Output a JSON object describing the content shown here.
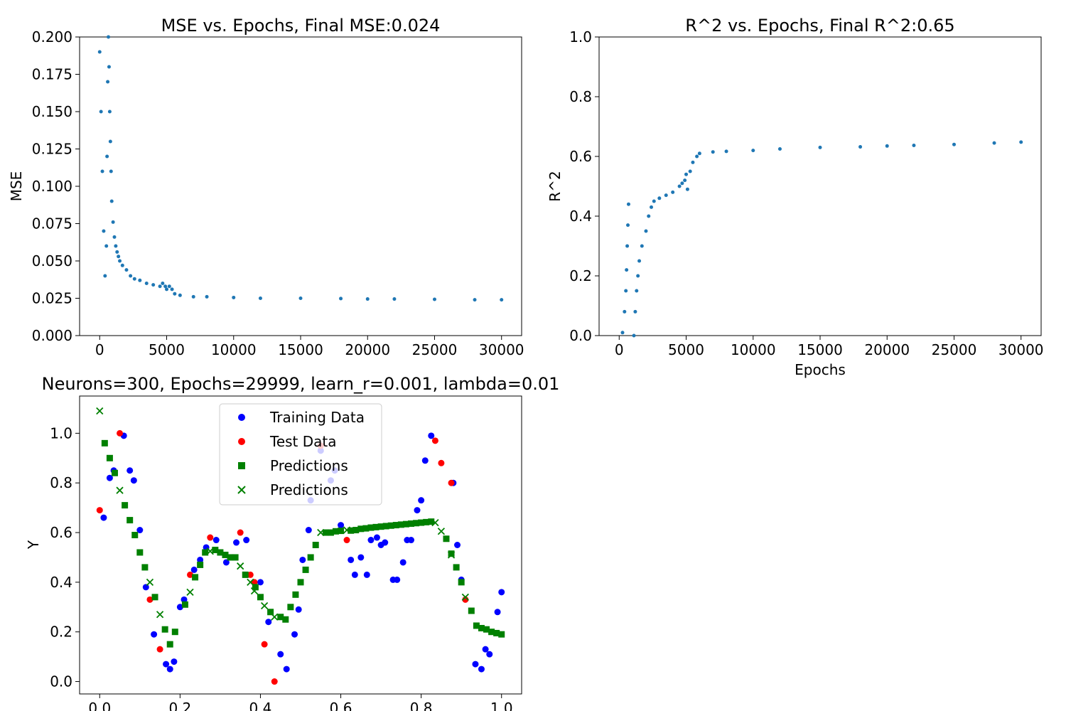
{
  "colors": {
    "history": "#1f77b4",
    "training": "#0000ff",
    "test": "#ff0000",
    "prediction": "#008000"
  },
  "chart_data": [
    {
      "type": "scatter",
      "title": "MSE vs. Epochs, Final MSE:0.024",
      "xlabel": "",
      "ylabel": "MSE",
      "xlim": [
        -1500,
        31500
      ],
      "ylim": [
        0,
        0.2
      ],
      "xticks": [
        0,
        5000,
        10000,
        15000,
        20000,
        25000,
        30000
      ],
      "xtick_labels": [
        "0",
        "5000",
        "10000",
        "15000",
        "20000",
        "25000",
        "30000"
      ],
      "yticks": [
        0.0,
        0.025,
        0.05,
        0.075,
        0.1,
        0.125,
        0.15,
        0.175,
        0.2
      ],
      "ytick_labels": [
        "0.000",
        "0.025",
        "0.050",
        "0.075",
        "0.100",
        "0.125",
        "0.150",
        "0.175",
        "0.200"
      ],
      "series": [
        {
          "x": [
            0,
            100,
            200,
            300,
            400,
            500,
            550,
            600,
            650,
            700,
            750,
            800,
            850,
            900,
            1000,
            1100,
            1200,
            1300,
            1400,
            1500,
            1700,
            2000,
            2300,
            2600,
            3000,
            3500,
            4000,
            4500,
            4700,
            4900,
            5000,
            5200,
            5400,
            5600,
            6000,
            7000,
            8000,
            10000,
            12000,
            15000,
            18000,
            20000,
            22000,
            25000,
            28000,
            30000
          ],
          "y": [
            0.19,
            0.15,
            0.11,
            0.07,
            0.04,
            0.06,
            0.12,
            0.17,
            0.2,
            0.18,
            0.15,
            0.13,
            0.11,
            0.09,
            0.076,
            0.066,
            0.06,
            0.056,
            0.053,
            0.05,
            0.047,
            0.044,
            0.04,
            0.038,
            0.037,
            0.035,
            0.034,
            0.033,
            0.035,
            0.033,
            0.031,
            0.033,
            0.031,
            0.028,
            0.027,
            0.026,
            0.026,
            0.0255,
            0.025,
            0.025,
            0.0248,
            0.0245,
            0.0245,
            0.0243,
            0.024,
            0.024
          ]
        }
      ]
    },
    {
      "type": "scatter",
      "title": "R^2 vs. Epochs, Final R^2:0.65",
      "xlabel": "Epochs",
      "ylabel": "R^2",
      "xlim": [
        -1500,
        31500
      ],
      "ylim": [
        0,
        1.0
      ],
      "xticks": [
        0,
        5000,
        10000,
        15000,
        20000,
        25000,
        30000
      ],
      "xtick_labels": [
        "0",
        "5000",
        "10000",
        "15000",
        "20000",
        "25000",
        "30000"
      ],
      "yticks": [
        0.0,
        0.2,
        0.4,
        0.6,
        0.8,
        1.0
      ],
      "ytick_labels": [
        "0.0",
        "0.2",
        "0.4",
        "0.6",
        "0.8",
        "1.0"
      ],
      "series": [
        {
          "x": [
            250,
            400,
            500,
            550,
            600,
            650,
            700,
            1100,
            1200,
            1300,
            1400,
            1500,
            1700,
            2000,
            2200,
            2400,
            2600,
            3000,
            3500,
            4000,
            4500,
            4700,
            4900,
            5000,
            5100,
            5300,
            5500,
            5800,
            6000,
            7000,
            8000,
            10000,
            12000,
            15000,
            18000,
            20000,
            22000,
            25000,
            28000,
            30000
          ],
          "y": [
            0.01,
            0.08,
            0.15,
            0.22,
            0.3,
            0.37,
            0.44,
            0.0,
            0.08,
            0.15,
            0.2,
            0.25,
            0.3,
            0.35,
            0.4,
            0.43,
            0.45,
            0.46,
            0.47,
            0.48,
            0.5,
            0.51,
            0.52,
            0.54,
            0.49,
            0.55,
            0.58,
            0.6,
            0.61,
            0.615,
            0.617,
            0.62,
            0.625,
            0.63,
            0.632,
            0.635,
            0.637,
            0.64,
            0.645,
            0.648
          ]
        }
      ]
    },
    {
      "type": "scatter",
      "title": "Neurons=300, Epochs=29999, learn_r=0.001, lambda=0.01",
      "xlabel": "",
      "ylabel": "Y",
      "xlim": [
        -0.05,
        1.05
      ],
      "ylim": [
        -0.05,
        1.15
      ],
      "xticks": [
        0.0,
        0.2,
        0.4,
        0.6,
        0.8,
        1.0
      ],
      "xtick_labels": [
        "0.0",
        "0.2",
        "0.4",
        "0.6",
        "0.8",
        "1.0"
      ],
      "yticks": [
        0.0,
        0.2,
        0.4,
        0.6,
        0.8,
        1.0
      ],
      "ytick_labels": [
        "0.0",
        "0.2",
        "0.4",
        "0.6",
        "0.8",
        "1.0"
      ],
      "legend": {
        "position": "upper-center",
        "entries": [
          "Training Data",
          "Test Data",
          "Predictions",
          "Predictions"
        ]
      },
      "series": [
        {
          "name": "Training Data",
          "marker": "circle",
          "x": [
            0.01,
            0.025,
            0.035,
            0.06,
            0.075,
            0.085,
            0.1,
            0.115,
            0.135,
            0.165,
            0.175,
            0.185,
            0.2,
            0.21,
            0.235,
            0.25,
            0.265,
            0.29,
            0.3,
            0.315,
            0.34,
            0.365,
            0.4,
            0.42,
            0.45,
            0.465,
            0.485,
            0.495,
            0.505,
            0.52,
            0.525,
            0.55,
            0.575,
            0.585,
            0.6,
            0.625,
            0.635,
            0.65,
            0.665,
            0.675,
            0.69,
            0.7,
            0.71,
            0.73,
            0.74,
            0.755,
            0.765,
            0.775,
            0.79,
            0.8,
            0.81,
            0.825,
            0.88,
            0.89,
            0.9,
            0.935,
            0.95,
            0.96,
            0.97,
            0.99,
            1.0
          ],
          "y": [
            0.66,
            0.82,
            0.85,
            0.99,
            0.85,
            0.81,
            0.61,
            0.38,
            0.19,
            0.07,
            0.05,
            0.08,
            0.3,
            0.33,
            0.45,
            0.49,
            0.54,
            0.57,
            0.52,
            0.48,
            0.56,
            0.57,
            0.4,
            0.24,
            0.11,
            0.05,
            0.19,
            0.29,
            0.49,
            0.61,
            0.73,
            0.93,
            0.81,
            0.85,
            0.63,
            0.49,
            0.43,
            0.5,
            0.43,
            0.57,
            0.58,
            0.55,
            0.56,
            0.41,
            0.41,
            0.48,
            0.57,
            0.57,
            0.69,
            0.73,
            0.89,
            0.99,
            0.8,
            0.55,
            0.41,
            0.07,
            0.05,
            0.13,
            0.11,
            0.28,
            0.36
          ]
        },
        {
          "name": "Test Data",
          "marker": "circle",
          "x": [
            0.0,
            0.05,
            0.125,
            0.15,
            0.225,
            0.275,
            0.35,
            0.375,
            0.385,
            0.41,
            0.435,
            0.55,
            0.615,
            0.835,
            0.85,
            0.875,
            0.91
          ],
          "y": [
            0.69,
            1.0,
            0.33,
            0.13,
            0.43,
            0.58,
            0.6,
            0.43,
            0.4,
            0.15,
            0.0,
            0.95,
            0.57,
            0.97,
            0.88,
            0.8,
            0.33
          ]
        },
        {
          "name": "Predictions",
          "marker": "square",
          "x": [
            0.0125,
            0.025,
            0.0375,
            0.0625,
            0.075,
            0.0875,
            0.1,
            0.1125,
            0.1375,
            0.1625,
            0.175,
            0.1875,
            0.2125,
            0.2375,
            0.25,
            0.2625,
            0.2875,
            0.3,
            0.3125,
            0.325,
            0.3375,
            0.3625,
            0.3875,
            0.4,
            0.425,
            0.45,
            0.4625,
            0.475,
            0.4875,
            0.5,
            0.5125,
            0.525,
            0.5375,
            0.5625,
            0.575,
            0.5875,
            0.6,
            0.625,
            0.6375,
            0.65,
            0.6625,
            0.675,
            0.6875,
            0.7,
            0.7125,
            0.725,
            0.7375,
            0.75,
            0.7625,
            0.775,
            0.7875,
            0.8,
            0.8125,
            0.825,
            0.8625,
            0.875,
            0.8875,
            0.9,
            0.925,
            0.9375,
            0.95,
            0.9625,
            0.975,
            0.9875,
            1.0
          ],
          "y": [
            0.96,
            0.9,
            0.84,
            0.71,
            0.65,
            0.59,
            0.52,
            0.46,
            0.34,
            0.21,
            0.15,
            0.2,
            0.31,
            0.42,
            0.47,
            0.52,
            0.53,
            0.52,
            0.51,
            0.5,
            0.5,
            0.43,
            0.38,
            0.34,
            0.28,
            0.26,
            0.25,
            0.3,
            0.35,
            0.4,
            0.45,
            0.5,
            0.55,
            0.6,
            0.6,
            0.605,
            0.607,
            0.608,
            0.61,
            0.615,
            0.617,
            0.62,
            0.622,
            0.624,
            0.626,
            0.628,
            0.63,
            0.632,
            0.634,
            0.636,
            0.638,
            0.64,
            0.642,
            0.644,
            0.575,
            0.515,
            0.46,
            0.4,
            0.285,
            0.225,
            0.215,
            0.21,
            0.2,
            0.195,
            0.19
          ]
        },
        {
          "name": "Predictions",
          "marker": "x",
          "x": [
            0.0,
            0.05,
            0.125,
            0.15,
            0.225,
            0.275,
            0.35,
            0.375,
            0.385,
            0.41,
            0.435,
            0.55,
            0.615,
            0.835,
            0.85,
            0.875,
            0.91
          ],
          "y": [
            1.09,
            0.77,
            0.4,
            0.27,
            0.36,
            0.525,
            0.465,
            0.4,
            0.365,
            0.305,
            0.26,
            0.6,
            0.61,
            0.64,
            0.605,
            0.51,
            0.34
          ]
        }
      ]
    }
  ]
}
